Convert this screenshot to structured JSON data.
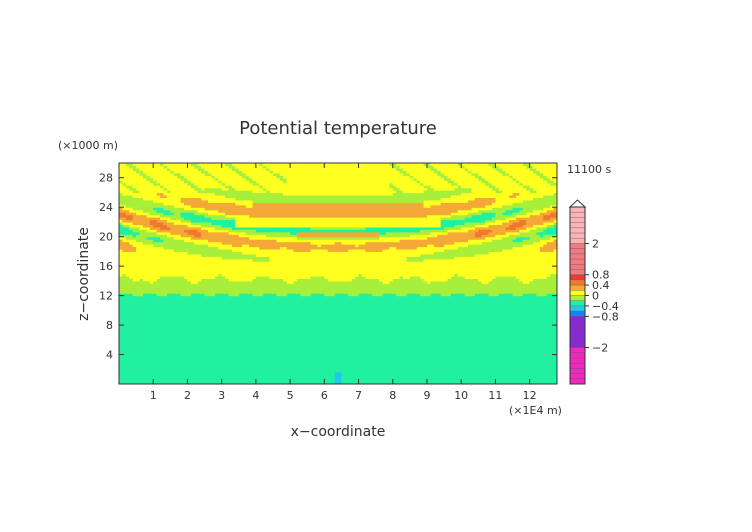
{
  "chart_data": {
    "type": "heatmap",
    "title": "Potential temperature",
    "xlabel": "x−coordinate",
    "ylabel": "z−coordinate",
    "x_unit": "(×1E4 m)",
    "y_unit": "(×1000 m)",
    "time_label": "11100 s",
    "x_range": [
      0,
      12.8
    ],
    "y_range": [
      0,
      30
    ],
    "x_ticks": [
      "1",
      "2",
      "3",
      "4",
      "5",
      "6",
      "7",
      "8",
      "9",
      "10",
      "11",
      "12"
    ],
    "y_ticks": [
      "4",
      "8",
      "12",
      "16",
      "20",
      "24",
      "28"
    ],
    "colorbar": {
      "labels": [
        "2",
        "0.8",
        "0.4",
        "0",
        "−0.4",
        "−0.8",
        "−2"
      ],
      "bands": [
        {
          "lo": 2.0,
          "hi": 3.4,
          "color": "#f9b4b8"
        },
        {
          "lo": 0.8,
          "hi": 2.0,
          "color": "#f47a82"
        },
        {
          "lo": 0.6,
          "hi": 0.8,
          "color": "#e83838"
        },
        {
          "lo": 0.4,
          "hi": 0.6,
          "color": "#f0782c"
        },
        {
          "lo": 0.2,
          "hi": 0.4,
          "color": "#f4a838"
        },
        {
          "lo": 0.0,
          "hi": 0.2,
          "color": "#ffff20"
        },
        {
          "lo": -0.2,
          "hi": 0.0,
          "color": "#a8ef3c"
        },
        {
          "lo": -0.4,
          "hi": -0.2,
          "color": "#20f0a0"
        },
        {
          "lo": -0.6,
          "hi": -0.4,
          "color": "#20c8f0"
        },
        {
          "lo": -0.8,
          "hi": -0.6,
          "color": "#2080f0"
        },
        {
          "lo": -2.0,
          "hi": -0.8,
          "color": "#8a28d8"
        },
        {
          "lo": -3.4,
          "hi": -2.0,
          "color": "#f028c0"
        }
      ]
    },
    "regions": [
      {
        "z": [
          0,
          12.3
        ],
        "value": -0.3,
        "label": "-0.4 to -0.2"
      },
      {
        "z": [
          12.3,
          14.5
        ],
        "value": -0.1,
        "label": "-0.2 to 0"
      },
      {
        "z": [
          14.5,
          30
        ],
        "value": 0.1,
        "label": "0 to 0.2"
      },
      {
        "z": [
          17,
          26
        ],
        "value": 0.3,
        "label": "0.2 to 0.4 bands"
      },
      {
        "z": [
          20.5,
          21.5
        ],
        "value": 0.5,
        "label": "0.4 to 0.6 core"
      }
    ]
  }
}
